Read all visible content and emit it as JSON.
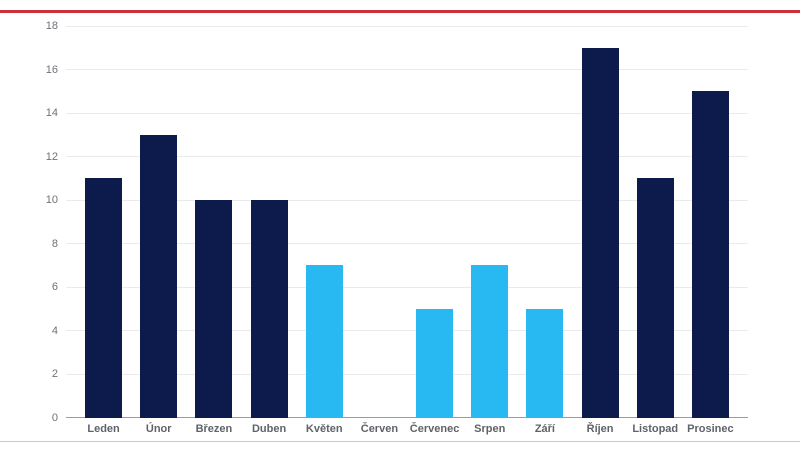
{
  "accent": {
    "top_line_color": "#cc2f3a",
    "bottom_divider_color": "#c7c9ce"
  },
  "chart_data": {
    "type": "bar",
    "title": "",
    "xlabel": "",
    "ylabel": "",
    "categories": [
      "Leden",
      "Únor",
      "Březen",
      "Duben",
      "Květen",
      "Červen",
      "Červenec",
      "Srpen",
      "Září",
      "Říjen",
      "Listopad",
      "Prosinec"
    ],
    "values": [
      11,
      13,
      10,
      10,
      7,
      0,
      5,
      7,
      5,
      17,
      11,
      15
    ],
    "bar_colors": [
      "#0d1b4c",
      "#0d1b4c",
      "#0d1b4c",
      "#0d1b4c",
      "#29b9f2",
      null,
      "#29b9f2",
      "#29b9f2",
      "#29b9f2",
      "#0d1b4c",
      "#0d1b4c",
      "#0d1b4c"
    ],
    "color_legend": {
      "dark_navy": "#0d1b4c",
      "light_cyan": "#29b9f2"
    },
    "ylim": [
      0,
      18
    ],
    "yticks": [
      0,
      2,
      4,
      6,
      8,
      10,
      12,
      14,
      16,
      18
    ],
    "grid": true,
    "legend_position": "none",
    "grid_color": "#e9eaee",
    "axis_line_color": "#9b9ca1",
    "x_label_color": "#5f6368",
    "y_label_color": "#6d7176"
  }
}
